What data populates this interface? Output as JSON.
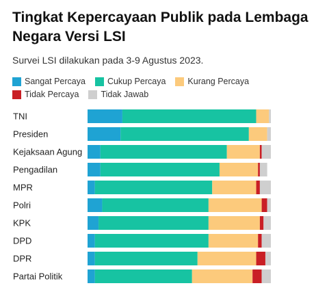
{
  "title": "Tingkat Kepercayaan Publik pada Lembaga Negara Versi LSI",
  "subtitle": "Survei LSI dilakukan pada 3-9 Agustus 2023.",
  "colors": {
    "sangat": "#1fa3d3",
    "cukup": "#17c3a2",
    "kurang": "#fcca7c",
    "tidak": "#c91f25",
    "jawab": "#cfcfcf"
  },
  "chart_data": {
    "type": "bar",
    "orientation": "horizontal",
    "stacked": true,
    "xlim": [
      0,
      100
    ],
    "categories": [
      "TNI",
      "Presiden",
      "Kejaksaan Agung",
      "Pengadilan",
      "MPR",
      "Polri",
      "KPK",
      "DPD",
      "DPR",
      "Partai Politik"
    ],
    "series": [
      {
        "name": "Sangat Percaya",
        "color": "#1fa3d3",
        "values": [
          19,
          18,
          7,
          7,
          4,
          8,
          6,
          4,
          4,
          4
        ]
      },
      {
        "name": "Cukup Percaya",
        "color": "#17c3a2",
        "values": [
          73,
          70,
          69,
          65,
          64,
          58,
          60,
          62,
          56,
          53
        ]
      },
      {
        "name": "Kurang Percaya",
        "color": "#fcca7c",
        "values": [
          7,
          10,
          18,
          21,
          24,
          29,
          28,
          27,
          32,
          33
        ]
      },
      {
        "name": "Tidak Percaya",
        "color": "#c91f25",
        "values": [
          0,
          0,
          1,
          1,
          2,
          3,
          2,
          2,
          5,
          5
        ]
      },
      {
        "name": "Tidak Jawab",
        "color": "#cfcfcf",
        "values": [
          1,
          2,
          5,
          4,
          6,
          2,
          4,
          5,
          3,
          5
        ]
      }
    ],
    "legend_position": "top-left"
  }
}
